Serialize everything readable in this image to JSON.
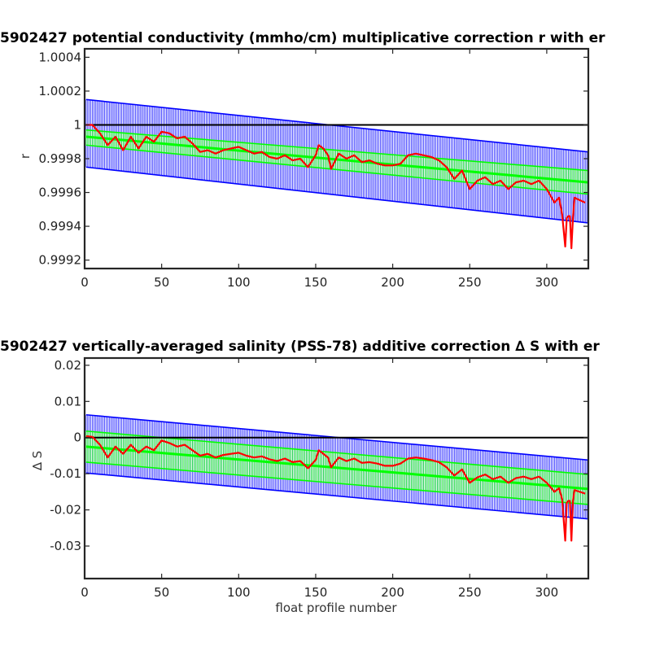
{
  "chart_data": [
    {
      "type": "line",
      "title": "5902427 potential conductivity (mmho/cm) multiplicative correction r with er",
      "xlabel": "",
      "ylabel": "r",
      "xlim": [
        0,
        327
      ],
      "ylim": [
        0.99915,
        1.00045
      ],
      "xticks": [
        0,
        50,
        100,
        150,
        200,
        250,
        300
      ],
      "xtick_labels": [
        "0",
        "50",
        "100",
        "150",
        "200",
        "250",
        "300"
      ],
      "yticks": [
        0.9992,
        0.9994,
        0.9996,
        0.9998,
        1,
        1.0002,
        1.0004
      ],
      "ytick_labels": [
        "0.9992",
        "0.9994",
        "0.9996",
        "0.9998",
        "1",
        "1.0002",
        "1.0004"
      ],
      "reference_line": 1,
      "grid": false,
      "series": [
        {
          "role": "fit-error-band",
          "color": "#0000ff",
          "x_range": [
            1,
            327
          ],
          "center": [
            0.99995,
            0.99968
          ],
          "upper": [
            1.00015,
            0.99984
          ],
          "lower": [
            0.99975,
            0.99942
          ]
        },
        {
          "role": "correction-error-band",
          "color": "#00ff00",
          "x_range": [
            1,
            327
          ],
          "center": [
            0.99993,
            0.99966
          ],
          "upper": [
            0.99997,
            0.99973
          ],
          "lower": [
            0.99988,
            0.99959
          ]
        },
        {
          "role": "correction-r",
          "color": "#ff0000",
          "x": [
            1,
            5,
            10,
            15,
            20,
            25,
            30,
            35,
            40,
            45,
            50,
            55,
            60,
            65,
            70,
            75,
            80,
            85,
            90,
            95,
            100,
            105,
            110,
            115,
            120,
            125,
            130,
            135,
            140,
            145,
            150,
            152,
            155,
            158,
            160,
            165,
            170,
            175,
            180,
            185,
            190,
            195,
            200,
            205,
            210,
            215,
            220,
            225,
            230,
            235,
            240,
            245,
            250,
            255,
            260,
            265,
            270,
            275,
            280,
            285,
            290,
            295,
            300,
            305,
            308,
            310,
            312,
            313,
            314,
            315,
            316,
            317,
            318,
            320,
            325
          ],
          "y": [
            1.0,
            1.0,
            0.99995,
            0.99988,
            0.99993,
            0.99985,
            0.99993,
            0.99986,
            0.99993,
            0.9999,
            0.99996,
            0.99995,
            0.99992,
            0.99993,
            0.99989,
            0.99984,
            0.99985,
            0.99983,
            0.99985,
            0.99986,
            0.99987,
            0.99985,
            0.99983,
            0.99984,
            0.99981,
            0.9998,
            0.99982,
            0.99979,
            0.9998,
            0.99975,
            0.99982,
            0.99988,
            0.99986,
            0.99982,
            0.99974,
            0.99983,
            0.9998,
            0.99982,
            0.99978,
            0.99979,
            0.99977,
            0.99976,
            0.99976,
            0.99977,
            0.99982,
            0.99983,
            0.99982,
            0.99981,
            0.99979,
            0.99975,
            0.99968,
            0.99973,
            0.99962,
            0.99967,
            0.99969,
            0.99965,
            0.99967,
            0.99962,
            0.99966,
            0.99967,
            0.99965,
            0.99967,
            0.99962,
            0.99954,
            0.99957,
            0.99947,
            0.99928,
            0.99945,
            0.99946,
            0.99946,
            0.99927,
            0.99945,
            0.99957,
            0.99956,
            0.99954
          ]
        }
      ]
    },
    {
      "type": "line",
      "title": "5902427 vertically-averaged salinity (PSS-78) additive correction ∆ S with er",
      "xlabel": "float profile number",
      "ylabel": "∆ S",
      "xlim": [
        0,
        327
      ],
      "ylim": [
        -0.039,
        0.022
      ],
      "xticks": [
        0,
        50,
        100,
        150,
        200,
        250,
        300
      ],
      "xtick_labels": [
        "0",
        "50",
        "100",
        "150",
        "200",
        "250",
        "300"
      ],
      "yticks": [
        -0.03,
        -0.02,
        -0.01,
        0,
        0.01,
        0.02
      ],
      "ytick_labels": [
        "-0.03",
        "-0.02",
        "-0.01",
        "0",
        "0.01",
        "0.02"
      ],
      "reference_line": 0,
      "grid": false,
      "series": [
        {
          "role": "fit-error-band",
          "color": "#0000ff",
          "x_range": [
            1,
            327
          ],
          "center": [
            -0.0018,
            -0.0142
          ],
          "upper": [
            0.0063,
            -0.0062
          ],
          "lower": [
            -0.0098,
            -0.0225
          ]
        },
        {
          "role": "correction-error-band",
          "color": "#00ff00",
          "x_range": [
            1,
            327
          ],
          "center": [
            -0.0025,
            -0.0142
          ],
          "upper": [
            0.0018,
            -0.0102
          ],
          "lower": [
            -0.0068,
            -0.0185
          ]
        },
        {
          "role": "correction-deltaS",
          "color": "#ff0000",
          "x": [
            1,
            5,
            10,
            15,
            20,
            25,
            30,
            35,
            40,
            45,
            50,
            55,
            60,
            65,
            70,
            75,
            80,
            85,
            90,
            95,
            100,
            105,
            110,
            115,
            120,
            125,
            130,
            135,
            140,
            145,
            150,
            152,
            155,
            158,
            160,
            165,
            170,
            175,
            180,
            185,
            190,
            195,
            200,
            205,
            210,
            215,
            220,
            225,
            230,
            235,
            240,
            245,
            250,
            255,
            260,
            265,
            270,
            275,
            280,
            285,
            290,
            295,
            300,
            305,
            308,
            310,
            312,
            313,
            314,
            315,
            316,
            317,
            318,
            320,
            325
          ],
          "y": [
            0.0004,
            0.0002,
            -0.002,
            -0.0055,
            -0.0025,
            -0.0045,
            -0.002,
            -0.0042,
            -0.0025,
            -0.0035,
            -0.0008,
            -0.0015,
            -0.0025,
            -0.002,
            -0.0035,
            -0.005,
            -0.0045,
            -0.0055,
            -0.0048,
            -0.0045,
            -0.0042,
            -0.005,
            -0.0055,
            -0.0052,
            -0.006,
            -0.0065,
            -0.0058,
            -0.0068,
            -0.0065,
            -0.0085,
            -0.0062,
            -0.0035,
            -0.0045,
            -0.0055,
            -0.0082,
            -0.0055,
            -0.0065,
            -0.0058,
            -0.007,
            -0.0068,
            -0.0072,
            -0.0078,
            -0.0078,
            -0.0072,
            -0.0058,
            -0.0055,
            -0.0058,
            -0.0062,
            -0.0068,
            -0.0082,
            -0.0105,
            -0.0088,
            -0.0125,
            -0.011,
            -0.0102,
            -0.0115,
            -0.0108,
            -0.0125,
            -0.0112,
            -0.0108,
            -0.0115,
            -0.0108,
            -0.0125,
            -0.015,
            -0.014,
            -0.017,
            -0.0285,
            -0.018,
            -0.0175,
            -0.0175,
            -0.0285,
            -0.0175,
            -0.0145,
            -0.0148,
            -0.0155
          ]
        }
      ]
    }
  ]
}
